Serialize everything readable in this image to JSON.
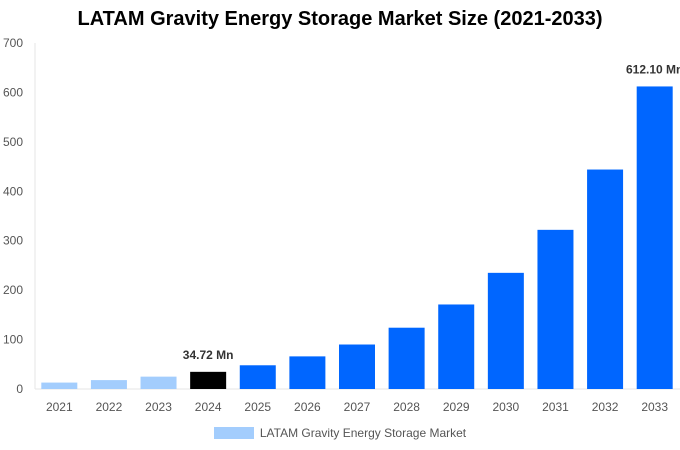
{
  "chart_data": {
    "type": "bar",
    "title": "LATAM Gravity Energy Storage Market Size (2021-2033)",
    "xlabel": "",
    "ylabel": "",
    "categories": [
      "2021",
      "2022",
      "2023",
      "2024",
      "2025",
      "2026",
      "2027",
      "2028",
      "2029",
      "2030",
      "2031",
      "2032",
      "2033"
    ],
    "series": [
      {
        "name": "LATAM Gravity Energy Storage Market",
        "values": [
          13,
          18,
          25,
          34.72,
          48,
          66,
          90,
          124,
          171,
          235,
          322,
          444,
          612.1
        ]
      }
    ],
    "bar_colors": [
      "#a3cdfd",
      "#a3cdfd",
      "#a3cdfd",
      "#000000",
      "#0066ff",
      "#0066ff",
      "#0066ff",
      "#0066ff",
      "#0066ff",
      "#0066ff",
      "#0066ff",
      "#0066ff",
      "#0066ff"
    ],
    "data_labels": [
      {
        "category": "2024",
        "text": "34.72 Mn"
      },
      {
        "category": "2033",
        "text": "612.10 Mn"
      }
    ],
    "ylim": [
      0,
      700
    ],
    "yticks": [
      0,
      100,
      200,
      300,
      400,
      500,
      600,
      700
    ],
    "grid": false,
    "legend": {
      "position": "bottom",
      "label": "LATAM Gravity Energy Storage Market",
      "color": "#a3cdfd"
    }
  }
}
